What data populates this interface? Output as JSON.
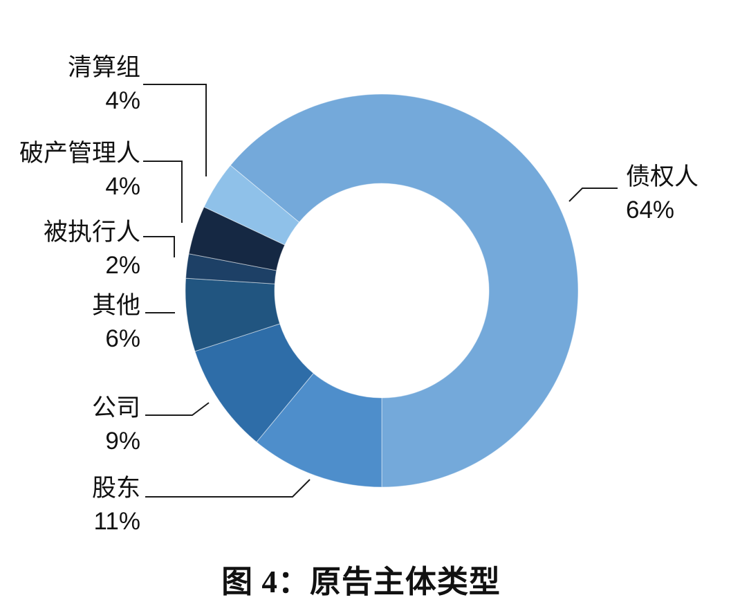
{
  "figure": {
    "title": "图 4：原告主体类型"
  },
  "chart_data": {
    "type": "pie",
    "subtype": "donut",
    "title": "图 4：原告主体类型",
    "legend": "none",
    "grid": false,
    "unit": "%",
    "start_angle_deg_clockwise_from_top": -50.4,
    "inner_radius_ratio": 0.545,
    "categories": [
      "债权人",
      "股东",
      "公司",
      "其他",
      "被执行人",
      "破产管理人",
      "清算组"
    ],
    "values": [
      64,
      11,
      9,
      6,
      2,
      4,
      4
    ],
    "segments": [
      {
        "label": "债权人",
        "pct": 64,
        "pct_label": "64%",
        "color": "#74A9DA"
      },
      {
        "label": "股东",
        "pct": 11,
        "pct_label": "11%",
        "color": "#4E8ECB"
      },
      {
        "label": "公司",
        "pct": 9,
        "pct_label": "9%",
        "color": "#2E6DA8"
      },
      {
        "label": "其他",
        "pct": 6,
        "pct_label": "6%",
        "color": "#215580"
      },
      {
        "label": "被执行人",
        "pct": 2,
        "pct_label": "2%",
        "color": "#1D4066"
      },
      {
        "label": "破产管理人",
        "pct": 4,
        "pct_label": "4%",
        "color": "#152843"
      },
      {
        "label": "清算组",
        "pct": 4,
        "pct_label": "4%",
        "color": "#8FC1E9"
      }
    ],
    "leader_line_color": "#1a1a1a",
    "background_color": "#ffffff"
  }
}
